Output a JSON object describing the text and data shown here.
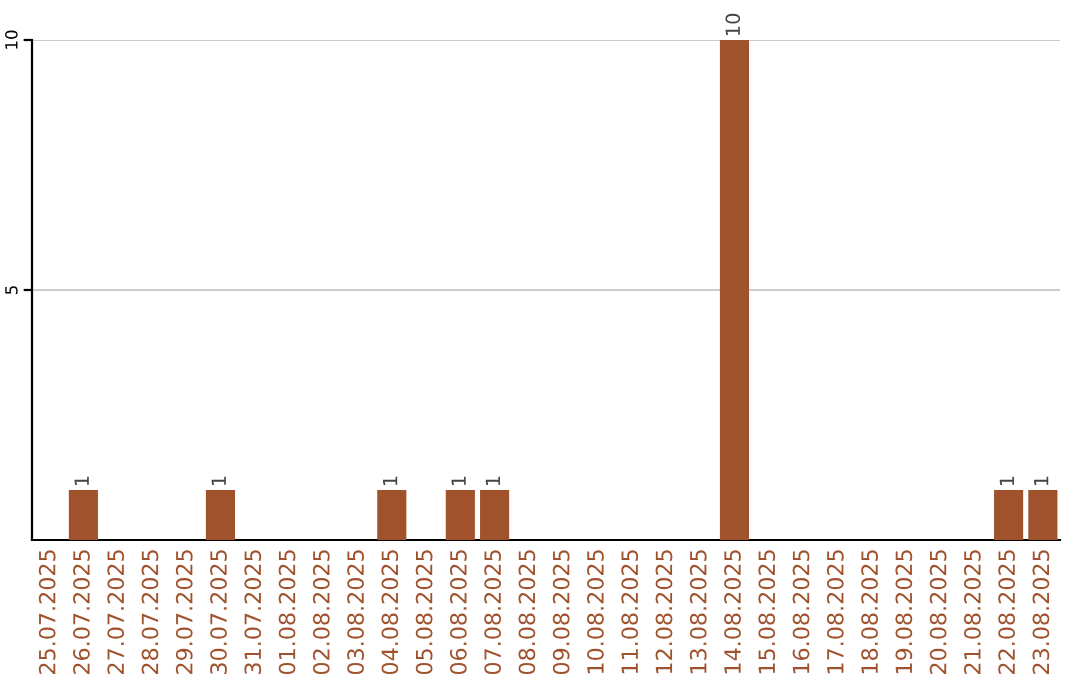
{
  "chart_data": {
    "type": "bar",
    "categories": [
      "25.07.2025",
      "26.07.2025",
      "27.07.2025",
      "28.07.2025",
      "29.07.2025",
      "30.07.2025",
      "31.07.2025",
      "01.08.2025",
      "02.08.2025",
      "03.08.2025",
      "04.08.2025",
      "05.08.2025",
      "06.08.2025",
      "07.08.2025",
      "08.08.2025",
      "09.08.2025",
      "10.08.2025",
      "11.08.2025",
      "12.08.2025",
      "13.08.2025",
      "14.08.2025",
      "15.08.2025",
      "16.08.2025",
      "17.08.2025",
      "18.08.2025",
      "19.08.2025",
      "20.08.2025",
      "21.08.2025",
      "22.08.2025",
      "23.08.2025"
    ],
    "values": [
      0,
      1,
      0,
      0,
      0,
      1,
      0,
      0,
      0,
      0,
      1,
      0,
      1,
      1,
      0,
      0,
      0,
      0,
      0,
      0,
      10,
      0,
      0,
      0,
      0,
      0,
      0,
      0,
      1,
      1
    ],
    "value_labels": [
      null,
      "1",
      null,
      null,
      null,
      "1",
      null,
      null,
      null,
      null,
      "1",
      null,
      "1",
      "1",
      null,
      null,
      null,
      null,
      null,
      null,
      "10",
      null,
      null,
      null,
      null,
      null,
      null,
      null,
      "1",
      "1"
    ],
    "color": "#a0522d",
    "ylim": [
      0,
      10
    ],
    "yticks": [
      5,
      10
    ],
    "grid": "y"
  }
}
